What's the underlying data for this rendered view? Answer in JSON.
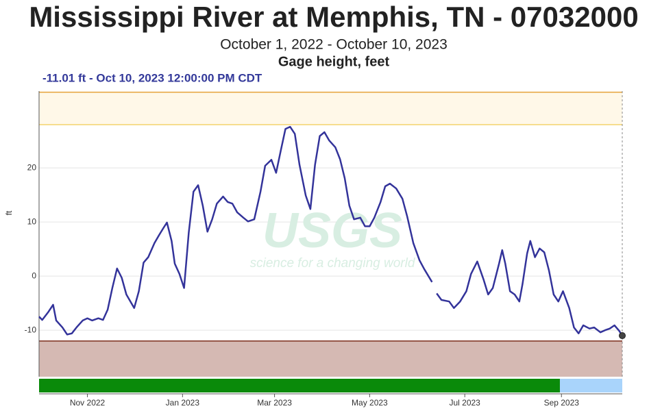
{
  "chart_data": {
    "type": "line",
    "title": "Mississippi River at Memphis, TN - 07032000",
    "subtitle": "October 1, 2022 - October 10, 2023",
    "parameter": "Gage height, feet",
    "annotation": "-11.01 ft - Oct 10, 2023 12:00:00 PM CDT",
    "y_label": "ft",
    "watermark": {
      "logo": "USGS",
      "tagline": "science for a changing world"
    },
    "color": "#33339a",
    "x": [
      "2022-10-01",
      "2022-10-03",
      "2022-10-07",
      "2022-10-10",
      "2022-10-12",
      "2022-10-16",
      "2022-10-19",
      "2022-10-22",
      "2022-10-25",
      "2022-10-29",
      "2022-11-01",
      "2022-11-04",
      "2022-11-08",
      "2022-11-11",
      "2022-11-14",
      "2022-11-17",
      "2022-11-20",
      "2022-11-23",
      "2022-11-26",
      "2022-12-01",
      "2022-12-04",
      "2022-12-07",
      "2022-12-10",
      "2022-12-14",
      "2022-12-17",
      "2022-12-20",
      "2022-12-22",
      "2022-12-25",
      "2022-12-27",
      "2022-12-30",
      "2023-01-02",
      "2023-01-05",
      "2023-01-08",
      "2023-01-11",
      "2023-01-14",
      "2023-01-17",
      "2023-01-20",
      "2023-01-23",
      "2023-01-27",
      "2023-01-30",
      "2023-02-02",
      "2023-02-05",
      "2023-02-09",
      "2023-02-12",
      "2023-02-16",
      "2023-02-20",
      "2023-02-23",
      "2023-02-27",
      "2023-03-02",
      "2023-03-05",
      "2023-03-08",
      "2023-03-11",
      "2023-03-14",
      "2023-03-17",
      "2023-03-21",
      "2023-03-24",
      "2023-03-27",
      "2023-03-30",
      "2023-04-02",
      "2023-04-05",
      "2023-04-09",
      "2023-04-12",
      "2023-04-15",
      "2023-04-18",
      "2023-04-21",
      "2023-04-25",
      "2023-04-28",
      "2023-05-01",
      "2023-05-04",
      "2023-05-08",
      "2023-05-11",
      "2023-05-14",
      "2023-05-18",
      "2023-05-22",
      "2023-05-25",
      "2023-05-29",
      "2023-06-02",
      "2023-06-05",
      "2023-06-10",
      "2023-06-12",
      "2023-06-13",
      "2023-06-16",
      "2023-06-21",
      "2023-06-24",
      "2023-06-28",
      "2023-07-02",
      "2023-07-05",
      "2023-07-09",
      "2023-07-13",
      "2023-07-16",
      "2023-07-19",
      "2023-07-23",
      "2023-07-25",
      "2023-07-27",
      "2023-07-30",
      "2023-08-02",
      "2023-08-05",
      "2023-08-07",
      "2023-08-10",
      "2023-08-12",
      "2023-08-15",
      "2023-08-18",
      "2023-08-21",
      "2023-08-24",
      "2023-08-27",
      "2023-08-30",
      "2023-09-02",
      "2023-09-06",
      "2023-09-09",
      "2023-09-12",
      "2023-09-15",
      "2023-09-19",
      "2023-09-22",
      "2023-09-26",
      "2023-09-29",
      "2023-10-02",
      "2023-10-05",
      "2023-10-08",
      "2023-10-10"
    ],
    "values": [
      -7.5,
      -8.1,
      -6.6,
      -5.3,
      -8.2,
      -9.5,
      -10.8,
      -10.6,
      -9.5,
      -8.2,
      -7.8,
      -8.2,
      -7.8,
      -8.1,
      -6.2,
      -2.2,
      1.4,
      -0.3,
      -3.4,
      -5.9,
      -2.8,
      2.5,
      3.5,
      6.1,
      7.6,
      9.0,
      9.9,
      6.5,
      2.3,
      0.4,
      -2.2,
      8.0,
      15.6,
      16.8,
      13.0,
      8.2,
      10.5,
      13.4,
      14.7,
      13.7,
      13.4,
      11.8,
      10.8,
      10.1,
      10.5,
      15.6,
      20.4,
      21.5,
      19.1,
      23.2,
      27.2,
      27.6,
      26.3,
      20.6,
      14.9,
      12.4,
      20.6,
      25.9,
      26.6,
      25.1,
      23.8,
      21.6,
      18.1,
      13.0,
      10.5,
      10.8,
      9.2,
      9.2,
      10.8,
      13.7,
      16.6,
      17.1,
      16.2,
      14.3,
      11.1,
      6.1,
      2.9,
      1.3,
      -1.1,
      null,
      -3.2,
      -4.4,
      -4.7,
      -5.9,
      -4.7,
      -2.8,
      0.4,
      2.7,
      -0.6,
      -3.4,
      -2.2,
      2.3,
      4.8,
      2.3,
      -2.8,
      -3.4,
      -4.7,
      -1.5,
      4.2,
      6.5,
      3.5,
      5.1,
      4.4,
      1.0,
      -3.4,
      -4.7,
      -2.8,
      -5.9,
      -9.5,
      -10.6,
      -9.1,
      -9.7,
      -9.5,
      -10.4,
      -10.0,
      -9.7,
      -9.1,
      -10.1,
      -11.01
    ],
    "xlim": [
      "2022-10-01",
      "2023-10-10"
    ],
    "xticks": [
      {
        "value": "2022-11-01",
        "label": "Nov 2022"
      },
      {
        "value": "2023-01-01",
        "label": "Jan 2023"
      },
      {
        "value": "2023-03-01",
        "label": "Mar 2023"
      },
      {
        "value": "2023-05-01",
        "label": "May 2023"
      },
      {
        "value": "2023-07-01",
        "label": "Jul 2023"
      },
      {
        "value": "2023-09-01",
        "label": "Sep 2023"
      }
    ],
    "ylim": [
      -18.6,
      34.2
    ],
    "yticks": [
      -10,
      0,
      10,
      20
    ],
    "grid": true,
    "bands": [
      {
        "from": 28,
        "to": 34,
        "color": "#fff8e8"
      },
      {
        "from": -18.6,
        "to": -12,
        "color": "#d5b9b3"
      }
    ],
    "lines": [
      {
        "value": 34,
        "color": "#e5a238"
      },
      {
        "value": 28,
        "color": "#f4d46c"
      },
      {
        "value": -12,
        "color": "#7b2d1c"
      }
    ],
    "approval": [
      {
        "from": "2022-10-01",
        "to": "2023-08-31",
        "color": "#0a8a0a"
      },
      {
        "from": "2023-08-31",
        "to": "2023-10-10",
        "color": "#a9d4fb"
      }
    ]
  }
}
